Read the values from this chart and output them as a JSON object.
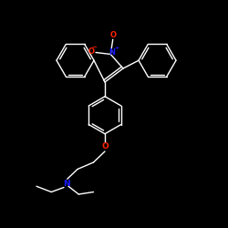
{
  "background_color": "#000000",
  "bond_color": "#ffffff",
  "O_color": "#ff2200",
  "N_color": "#1a1aff",
  "figsize": [
    2.5,
    2.5
  ],
  "dpi": 100,
  "xlim": [
    0,
    10
  ],
  "ylim": [
    0,
    10
  ]
}
